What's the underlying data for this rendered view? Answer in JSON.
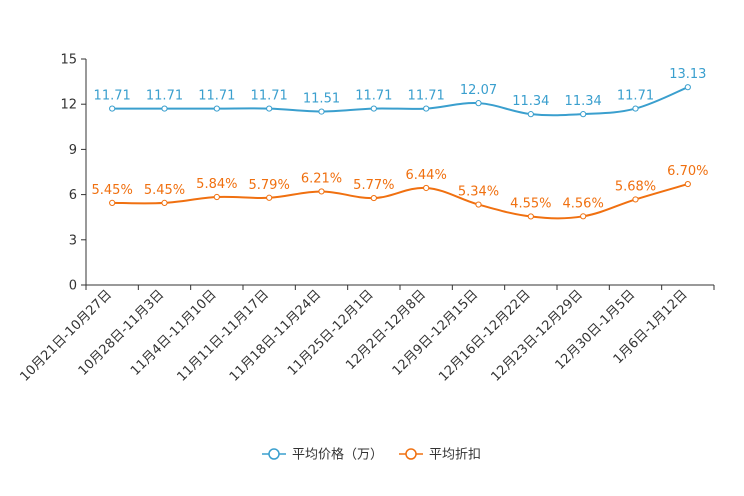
{
  "chart_data": {
    "type": "line",
    "title": "",
    "xlabel": "",
    "ylabel": "",
    "ylim": [
      0,
      15
    ],
    "yticks": [
      0,
      3,
      6,
      9,
      12,
      15
    ],
    "grid": false,
    "legend_position": "bottom-center",
    "categories": [
      "10月21日-10月27日",
      "10月28日-11月3日",
      "11月4日-11月10日",
      "11月11日-11月17日",
      "11月18日-11月24日",
      "11月25日-12月1日",
      "12月2日-12月8日",
      "12月9日-12月15日",
      "12月16日-12月22日",
      "12月23日-12月29日",
      "12月30日-1月5日",
      "1月6日-1月12日"
    ],
    "series": [
      {
        "name": "平均价格（万）",
        "color": "#3a9fce",
        "values": [
          11.71,
          11.71,
          11.71,
          11.71,
          11.51,
          11.71,
          11.71,
          12.07,
          11.34,
          11.34,
          11.71,
          13.13
        ],
        "labels": [
          "11.71",
          "11.71",
          "11.71",
          "11.71",
          "11.51",
          "11.71",
          "11.71",
          "12.07",
          "11.34",
          "11.34",
          "11.71",
          "13.13"
        ]
      },
      {
        "name": "平均折扣",
        "color": "#f07010",
        "values": [
          5.45,
          5.45,
          5.84,
          5.79,
          6.21,
          5.77,
          6.44,
          5.34,
          4.55,
          4.56,
          5.68,
          6.7
        ],
        "labels": [
          "5.45%",
          "5.45%",
          "5.84%",
          "5.79%",
          "6.21%",
          "5.77%",
          "6.44%",
          "5.34%",
          "4.55%",
          "4.56%",
          "5.68%",
          "6.70%"
        ]
      }
    ]
  }
}
